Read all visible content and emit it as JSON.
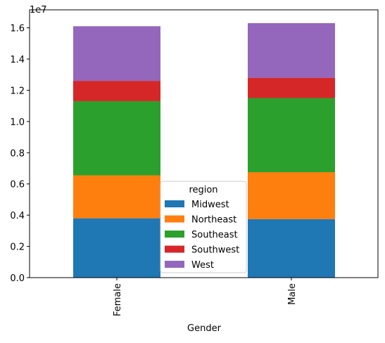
{
  "chart_data": {
    "type": "bar",
    "stacked": true,
    "categories": [
      "Female",
      "Male"
    ],
    "series": [
      {
        "name": "Midwest",
        "color": "#1f77b4",
        "values": [
          3800000,
          3750000
        ]
      },
      {
        "name": "Northeast",
        "color": "#ff7f0e",
        "values": [
          2750000,
          3000000
        ]
      },
      {
        "name": "Southeast",
        "color": "#2ca02c",
        "values": [
          4750000,
          4750000
        ]
      },
      {
        "name": "Southwest",
        "color": "#d62728",
        "values": [
          1300000,
          1300000
        ]
      },
      {
        "name": "West",
        "color": "#9467bd",
        "values": [
          3500000,
          3500000
        ]
      }
    ],
    "xlabel": "Gender",
    "ylabel": "",
    "ylim": [
      0,
      17150000
    ],
    "yticks": [
      0,
      2000000,
      4000000,
      6000000,
      8000000,
      10000000,
      12000000,
      14000000,
      16000000
    ],
    "ytick_labels": [
      "0.0",
      "0.2",
      "0.4",
      "0.6",
      "0.8",
      "1.0",
      "1.2",
      "1.4",
      "1.6"
    ],
    "offset_label": "1e7",
    "legend": {
      "title": "region",
      "placement": "bottom-center"
    },
    "grid": false
  }
}
